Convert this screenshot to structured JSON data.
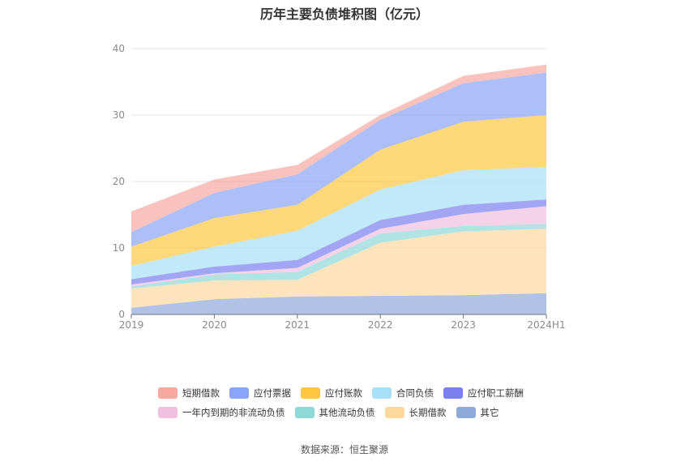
{
  "chart_data": {
    "type": "area",
    "stacked": true,
    "title": "历年主要负债堆积图（亿元）",
    "source": "数据来源：恒生聚源",
    "categories": [
      "2019",
      "2020",
      "2021",
      "2022",
      "2023",
      "2024H1"
    ],
    "y_ticks": [
      "0",
      "10",
      "20",
      "30",
      "40"
    ],
    "ylim": [
      0,
      40
    ],
    "grid": true,
    "legend_position": "bottom",
    "series": [
      {
        "name": "其它",
        "color": "#8fa9d8",
        "values": [
          1.0,
          2.3,
          2.7,
          2.8,
          2.9,
          3.2
        ]
      },
      {
        "name": "长期借款",
        "color": "#fdd9a0",
        "values": [
          2.9,
          2.8,
          2.5,
          8.0,
          9.6,
          9.7
        ]
      },
      {
        "name": "其他流动负债",
        "color": "#8ed8d8",
        "values": [
          0.3,
          0.9,
          1.2,
          1.4,
          0.8,
          0.7
        ]
      },
      {
        "name": "一年内到期的非流动负债",
        "color": "#f0c0e0",
        "values": [
          0.3,
          0.2,
          0.6,
          0.7,
          1.8,
          2.7
        ]
      },
      {
        "name": "应付职工薪酬",
        "color": "#7b7ff0",
        "values": [
          0.8,
          1.0,
          1.2,
          1.3,
          1.4,
          1.0
        ]
      },
      {
        "name": "合同负债",
        "color": "#a8e0f8",
        "values": [
          2.0,
          3.0,
          4.4,
          4.6,
          5.2,
          4.9
        ]
      },
      {
        "name": "应付账款",
        "color": "#ffc740",
        "values": [
          2.9,
          4.3,
          3.9,
          6.0,
          7.3,
          7.8
        ]
      },
      {
        "name": "应付票据",
        "color": "#8aa4f7",
        "values": [
          2.2,
          3.8,
          4.6,
          4.5,
          5.8,
          6.4
        ]
      },
      {
        "name": "短期借款",
        "color": "#f8a8a0",
        "values": [
          3.1,
          2.0,
          1.4,
          0.7,
          1.1,
          1.2
        ]
      }
    ],
    "legend_rows": [
      [
        "短期借款",
        "应付票据",
        "应付账款",
        "合同负债",
        "应付职工薪酬"
      ],
      [
        "一年内到期的非流动负债",
        "其他流动负债",
        "长期借款",
        "其它"
      ]
    ]
  }
}
